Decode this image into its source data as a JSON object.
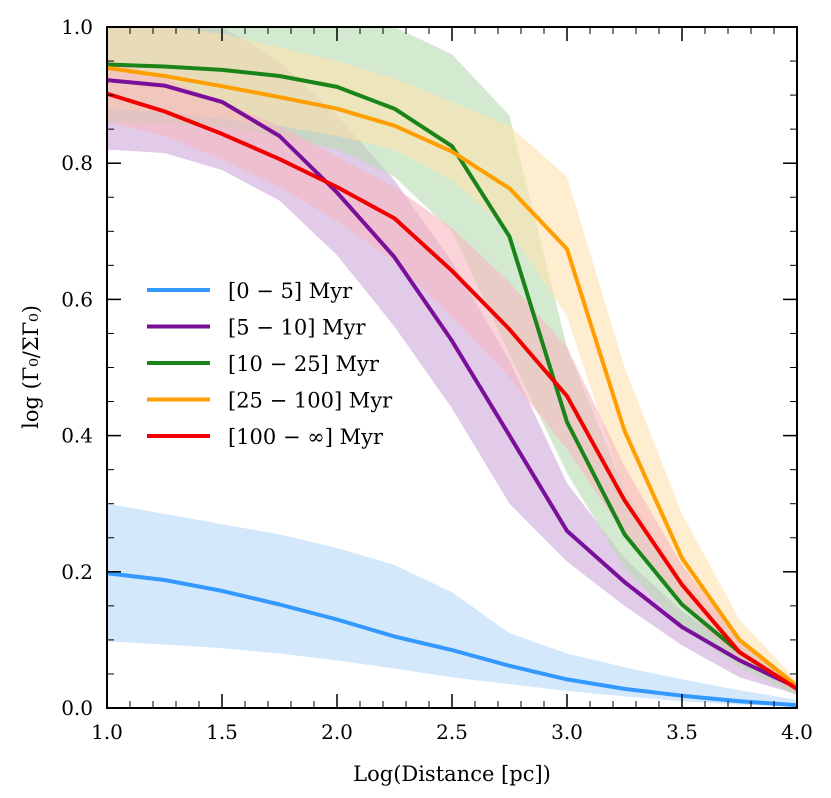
{
  "chart_data": {
    "type": "line",
    "title": "",
    "xlabel": "Log(Distance [pc])",
    "ylabel": "log (Γ₀/ΣΓ₀)",
    "xlim": [
      1.0,
      4.0
    ],
    "ylim": [
      0.0,
      1.0
    ],
    "xticks": [
      "1.0",
      "1.5",
      "2.0",
      "2.5",
      "3.0",
      "3.5",
      "4.0"
    ],
    "yticks": [
      "0.0",
      "0.2",
      "0.4",
      "0.6",
      "0.8",
      "1.0"
    ],
    "grid": false,
    "legend_position": "center-left",
    "x": [
      1.0,
      1.25,
      1.5,
      1.75,
      2.0,
      2.25,
      2.5,
      2.75,
      3.0,
      3.25,
      3.5,
      3.75,
      4.0
    ],
    "series": [
      {
        "name": "[0 − 5] Myr",
        "color": "#3399ff",
        "band_color": "#cfe6fb",
        "values": [
          0.198,
          0.188,
          0.172,
          0.152,
          0.13,
          0.105,
          0.085,
          0.062,
          0.042,
          0.028,
          0.018,
          0.01,
          0.004
        ],
        "lower": [
          0.098,
          0.093,
          0.088,
          0.08,
          0.07,
          0.058,
          0.045,
          0.035,
          0.025,
          0.017,
          0.01,
          0.005,
          0.002
        ],
        "upper": [
          0.3,
          0.285,
          0.27,
          0.255,
          0.235,
          0.21,
          0.17,
          0.11,
          0.08,
          0.06,
          0.042,
          0.026,
          0.012
        ]
      },
      {
        "name": "[5 − 10] Myr",
        "color": "#7a0f9a",
        "band_color": "#cfa7db",
        "values": [
          0.922,
          0.914,
          0.89,
          0.84,
          0.757,
          0.662,
          0.539,
          0.4,
          0.26,
          0.185,
          0.119,
          0.07,
          0.03
        ],
        "lower": [
          0.82,
          0.815,
          0.79,
          0.745,
          0.665,
          0.56,
          0.44,
          0.3,
          0.215,
          0.15,
          0.092,
          0.045,
          0.02
        ],
        "upper": [
          1.0,
          1.0,
          1.0,
          0.95,
          0.87,
          0.775,
          0.655,
          0.51,
          0.33,
          0.22,
          0.142,
          0.085,
          0.038
        ]
      },
      {
        "name": "[10 − 25] Myr",
        "color": "#1a8418",
        "band_color": "#b7dcb1",
        "values": [
          0.945,
          0.942,
          0.937,
          0.928,
          0.912,
          0.88,
          0.825,
          0.692,
          0.42,
          0.255,
          0.152,
          0.082,
          0.028
        ],
        "lower": [
          0.86,
          0.858,
          0.852,
          0.84,
          0.82,
          0.78,
          0.7,
          0.52,
          0.345,
          0.205,
          0.12,
          0.06,
          0.018
        ],
        "upper": [
          1.0,
          1.0,
          1.0,
          1.0,
          1.0,
          1.0,
          0.96,
          0.87,
          0.53,
          0.32,
          0.19,
          0.105,
          0.038
        ]
      },
      {
        "name": "[25 − 100] Myr",
        "color": "#ff9e00",
        "band_color": "#fde1ad",
        "values": [
          0.94,
          0.928,
          0.913,
          0.897,
          0.88,
          0.855,
          0.817,
          0.763,
          0.674,
          0.407,
          0.22,
          0.1,
          0.032
        ],
        "lower": [
          0.88,
          0.875,
          0.865,
          0.855,
          0.84,
          0.82,
          0.775,
          0.7,
          0.575,
          0.32,
          0.17,
          0.075,
          0.025
        ],
        "upper": [
          1.0,
          1.0,
          0.99,
          0.97,
          0.95,
          0.925,
          0.89,
          0.855,
          0.78,
          0.5,
          0.285,
          0.13,
          0.04
        ]
      },
      {
        "name": "[100 − ∞] Myr",
        "color": "#f20000",
        "band_color": "#f7b8c0",
        "values": [
          0.902,
          0.876,
          0.843,
          0.806,
          0.765,
          0.719,
          0.642,
          0.556,
          0.458,
          0.305,
          0.181,
          0.082,
          0.028
        ],
        "lower": [
          0.86,
          0.84,
          0.805,
          0.765,
          0.715,
          0.655,
          0.575,
          0.485,
          0.38,
          0.255,
          0.15,
          0.068,
          0.022
        ],
        "upper": [
          0.95,
          0.925,
          0.89,
          0.855,
          0.81,
          0.765,
          0.705,
          0.625,
          0.53,
          0.355,
          0.21,
          0.1,
          0.034
        ]
      }
    ]
  }
}
